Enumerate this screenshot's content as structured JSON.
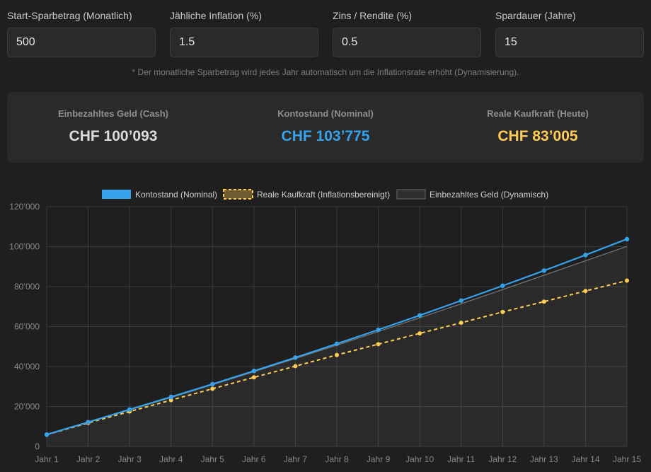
{
  "inputs": [
    {
      "label": "Start-Sparbetrag (Monatlich)",
      "value": "500"
    },
    {
      "label": "Jähliche Inflation (%)",
      "value": "1.5"
    },
    {
      "label": "Zins / Rendite (%)",
      "value": "0.5"
    },
    {
      "label": "Spardauer (Jahre)",
      "value": "15"
    }
  ],
  "note": "* Der monatliche Sparbetrag wird jedes Jahr automatisch um die Inflationsrate erhöht (Dynamisierung).",
  "summary": {
    "cash": {
      "label": "Einbezahltes Geld (Cash)",
      "value": "CHF 100’093",
      "color": "#dcdcdc"
    },
    "nominal": {
      "label": "Kontostand (Nominal)",
      "value": "CHF 103’775",
      "color": "#36a2eb"
    },
    "real": {
      "label": "Reale Kaufkraft (Heute)",
      "value": "CHF 83’005",
      "color": "#ffcd56"
    }
  },
  "chart_data": {
    "type": "line",
    "categories": [
      "Jahr 1",
      "Jahr 2",
      "Jahr 3",
      "Jahr 4",
      "Jahr 5",
      "Jahr 6",
      "Jahr 7",
      "Jahr 8",
      "Jahr 9",
      "Jahr 10",
      "Jahr 11",
      "Jahr 12",
      "Jahr 13",
      "Jahr 14",
      "Jahr 15"
    ],
    "ylim": [
      0,
      120000
    ],
    "yticks": [
      0,
      20000,
      40000,
      60000,
      80000,
      100000,
      120000
    ],
    "ytick_labels": [
      "0",
      "20’000",
      "40’000",
      "60’000",
      "80’000",
      "100’000",
      "120’000"
    ],
    "grid": true,
    "legend_position": "top",
    "series": [
      {
        "name": "Kontostand (Nominal)",
        "color": "#36a2eb",
        "style": "solid",
        "values": [
          6000,
          12200,
          18500,
          24800,
          31200,
          37800,
          44500,
          51400,
          58400,
          65600,
          73000,
          80400,
          88000,
          95800,
          103775
        ]
      },
      {
        "name": "Reale Kaufkraft (Inflationsbereinigt)",
        "color": "#ffcd56",
        "style": "dashed",
        "values": [
          5900,
          11800,
          17500,
          23200,
          28900,
          34600,
          40200,
          45800,
          51200,
          56600,
          61900,
          67300,
          72500,
          77800,
          83005
        ]
      },
      {
        "name": "Einbezahltes Geld (Dynamisch)",
        "color": "#7a7a7a",
        "style": "thin-fill",
        "values": [
          6000,
          12100,
          18300,
          24500,
          30900,
          37400,
          44000,
          50700,
          57500,
          64400,
          71400,
          78500,
          85700,
          92900,
          100093
        ]
      }
    ]
  }
}
